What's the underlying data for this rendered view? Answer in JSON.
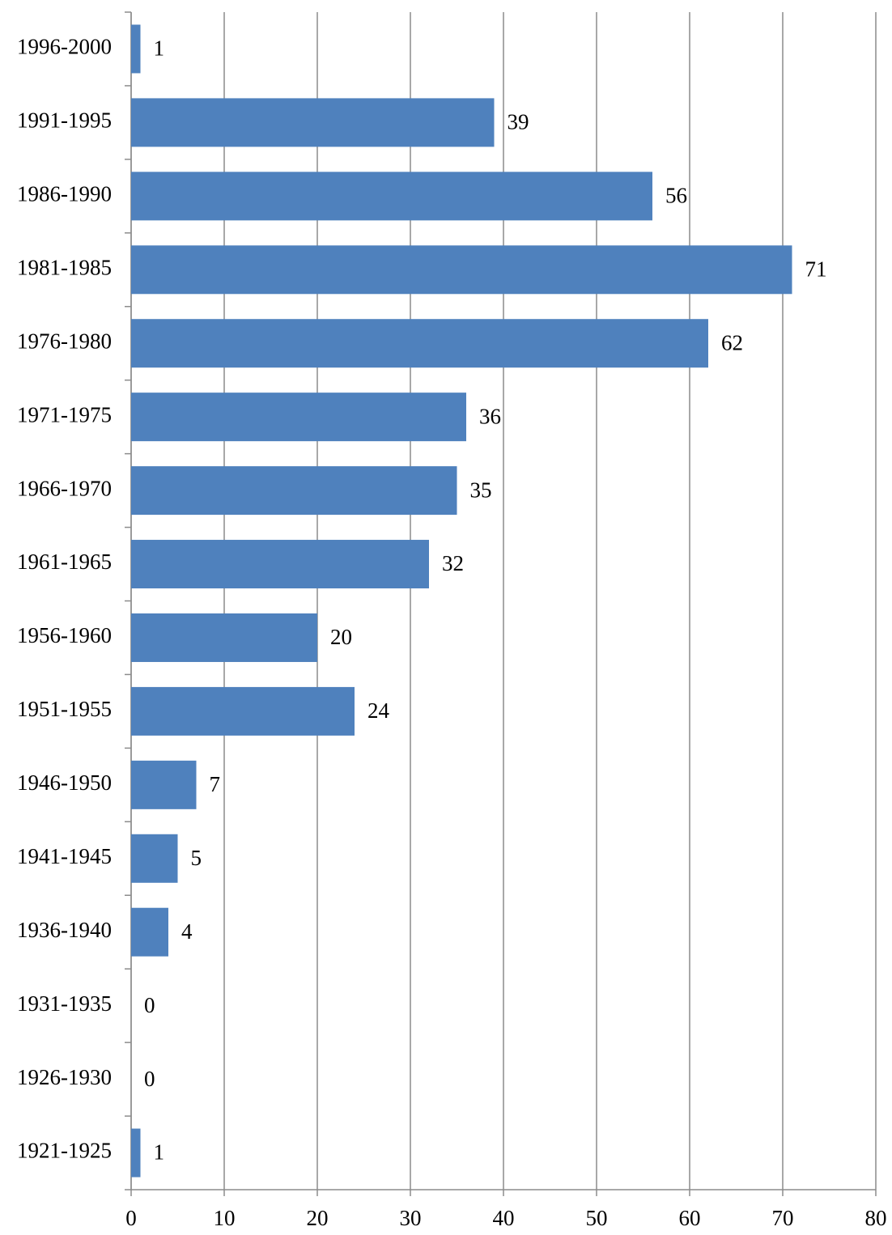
{
  "chart_data": {
    "type": "bar",
    "orientation": "horizontal",
    "categories": [
      "1996-2000",
      "1991-1995",
      "1986-1990",
      "1981-1985",
      "1976-1980",
      "1971-1975",
      "1966-1970",
      "1961-1965",
      "1956-1960",
      "1951-1955",
      "1946-1950",
      "1941-1945",
      "1936-1940",
      "1931-1935",
      "1926-1930",
      "1921-1925"
    ],
    "values": [
      1,
      39,
      56,
      71,
      62,
      36,
      35,
      32,
      20,
      24,
      7,
      5,
      4,
      0,
      0,
      1
    ],
    "color": "#4f81bd",
    "xlim": [
      0,
      80
    ],
    "xticks": [
      0,
      10,
      20,
      30,
      40,
      50,
      60,
      70,
      80
    ],
    "grid": true
  }
}
